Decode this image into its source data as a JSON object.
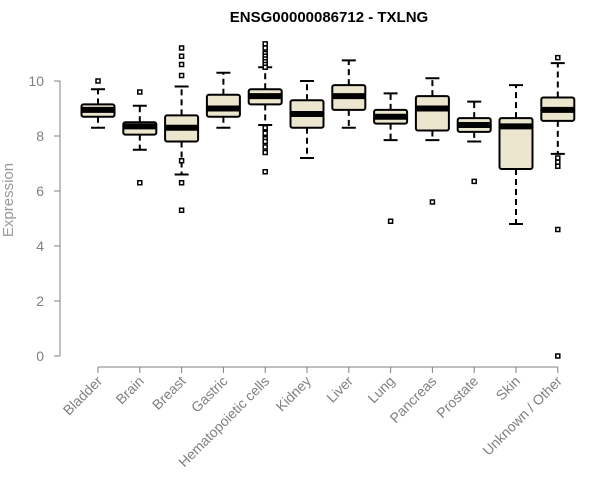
{
  "chart_data": {
    "type": "box",
    "title": "ENSG00000086712 - TXLNG",
    "ylabel": "Expression",
    "xlabel": "",
    "ylim": [
      0,
      11.5
    ],
    "yticks": [
      0,
      2,
      4,
      6,
      8,
      10
    ],
    "grid": false,
    "colors": {
      "box_fill": "#ede6cf",
      "stroke": "#000000",
      "axis": "#808080"
    },
    "categories": [
      "Bladder",
      "Brain",
      "Breast",
      "Gastric",
      "Hematopoietic cells",
      "Kidney",
      "Liver",
      "Lung",
      "Pancreas",
      "Prostate",
      "Skin",
      "Unknown / Other"
    ],
    "boxes": [
      {
        "name": "Bladder",
        "whisker_low": 8.3,
        "q1": 8.7,
        "median": 8.95,
        "q3": 9.15,
        "whisker_high": 9.7,
        "outliers": [
          10.0
        ]
      },
      {
        "name": "Brain",
        "whisker_low": 7.5,
        "q1": 8.05,
        "median": 8.35,
        "q3": 8.5,
        "whisker_high": 9.1,
        "outliers": [
          9.6,
          6.3
        ]
      },
      {
        "name": "Breast",
        "whisker_low": 6.6,
        "q1": 7.8,
        "median": 8.3,
        "q3": 8.75,
        "whisker_high": 9.8,
        "outliers": [
          11.2,
          10.9,
          10.6,
          10.2,
          7.1,
          6.3,
          5.3
        ]
      },
      {
        "name": "Gastric",
        "whisker_low": 8.3,
        "q1": 8.7,
        "median": 9.0,
        "q3": 9.5,
        "whisker_high": 10.3,
        "outliers": []
      },
      {
        "name": "Hematopoietic cells",
        "whisker_low": 8.4,
        "q1": 9.15,
        "median": 9.45,
        "q3": 9.7,
        "whisker_high": 10.5,
        "outliers": [
          11.35,
          11.2,
          11.0,
          10.9,
          10.8,
          10.7,
          10.6,
          10.5,
          8.3,
          8.1,
          7.9,
          7.8,
          7.6,
          7.4,
          6.7
        ]
      },
      {
        "name": "Kidney",
        "whisker_low": 7.2,
        "q1": 8.3,
        "median": 8.8,
        "q3": 9.3,
        "whisker_high": 10.0,
        "outliers": []
      },
      {
        "name": "Liver",
        "whisker_low": 8.3,
        "q1": 8.95,
        "median": 9.45,
        "q3": 9.85,
        "whisker_high": 10.75,
        "outliers": []
      },
      {
        "name": "Lung",
        "whisker_low": 7.85,
        "q1": 8.45,
        "median": 8.7,
        "q3": 8.95,
        "whisker_high": 9.55,
        "outliers": [
          4.9
        ]
      },
      {
        "name": "Pancreas",
        "whisker_low": 7.85,
        "q1": 8.2,
        "median": 9.0,
        "q3": 9.45,
        "whisker_high": 10.1,
        "outliers": [
          5.6
        ]
      },
      {
        "name": "Prostate",
        "whisker_low": 7.8,
        "q1": 8.15,
        "median": 8.4,
        "q3": 8.65,
        "whisker_high": 9.25,
        "outliers": [
          6.35
        ]
      },
      {
        "name": "Skin",
        "whisker_low": 4.8,
        "q1": 6.8,
        "median": 8.35,
        "q3": 8.65,
        "whisker_high": 9.85,
        "outliers": []
      },
      {
        "name": "Unknown / Other",
        "whisker_low": 7.35,
        "q1": 8.55,
        "median": 8.95,
        "q3": 9.4,
        "whisker_high": 10.65,
        "outliers": [
          10.85,
          7.2,
          7.05,
          6.9,
          4.6,
          0.0
        ]
      }
    ]
  }
}
